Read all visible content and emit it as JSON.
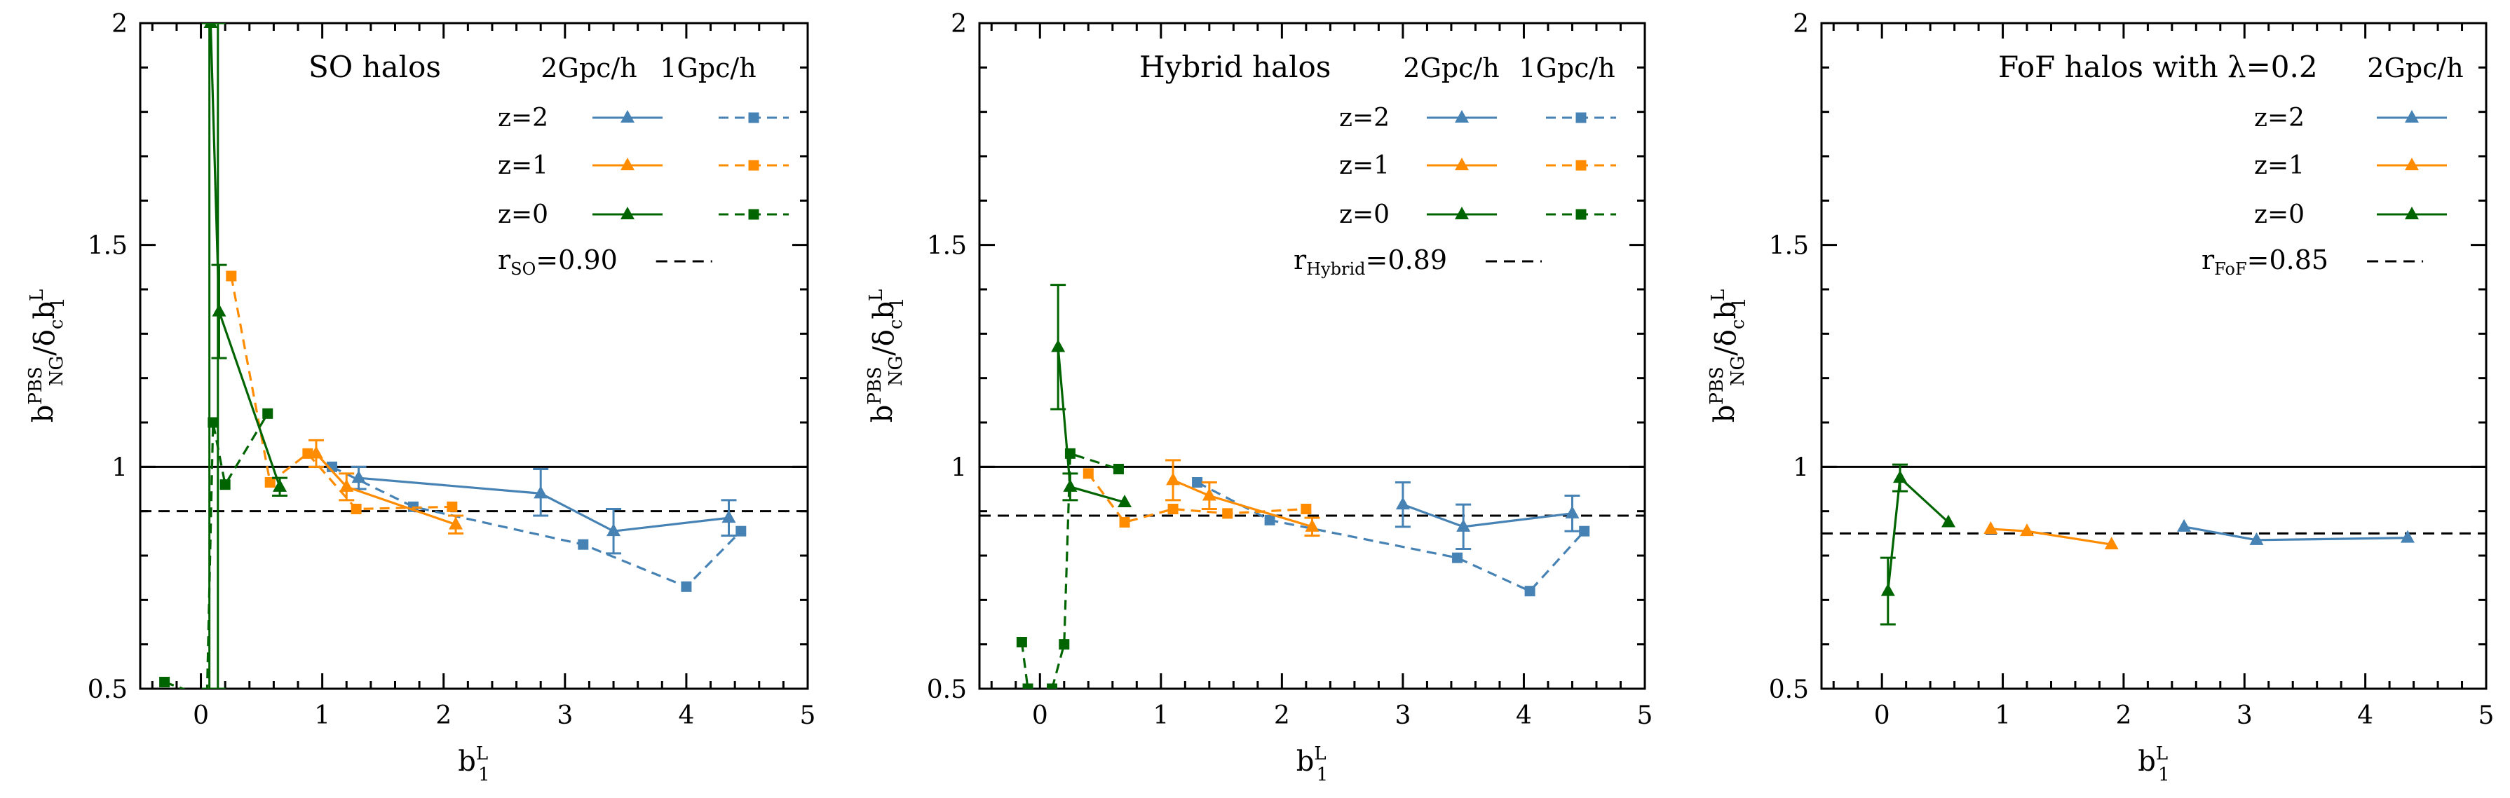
{
  "colors": {
    "blue": "#4682b4",
    "orange": "#ff8c00",
    "green": "#006400",
    "black": "#000000"
  },
  "chart_data": [
    {
      "type": "line",
      "title": "SO halos",
      "xlabel": {
        "base": "b",
        "sub": "1",
        "sup": "L"
      },
      "ylabel": {
        "parts": [
          [
            "b",
            ""
          ],
          [
            "PBS",
            "sup"
          ],
          [
            "NG",
            "sub"
          ],
          [
            "/δ",
            ""
          ],
          [
            "c",
            "sub"
          ],
          [
            "b",
            ""
          ],
          [
            "L",
            "sup"
          ],
          [
            "1",
            "sub"
          ]
        ]
      },
      "xlim": [
        -0.5,
        5
      ],
      "ylim": [
        0.5,
        2
      ],
      "xticks": [
        "0",
        "1",
        "2",
        "3",
        "4",
        "5"
      ],
      "yticks": [
        "0.5",
        "1",
        "1.5",
        "2"
      ],
      "legend_headers": [
        "2Gpc/h",
        "1Gpc/h"
      ],
      "legend_rows": [
        "z=2",
        "z=1",
        "z=0"
      ],
      "ratio_label": {
        "base": "r",
        "sub": "SO",
        "value": "=0.90"
      },
      "ratio": 0.9,
      "series": [
        {
          "name": "z=2 1Gpc/h",
          "color": "blue",
          "dashed": true,
          "marker": "square",
          "points": [
            [
              1.08,
              1.0
            ],
            [
              1.75,
              0.91
            ],
            [
              3.15,
              0.825
            ],
            [
              4.0,
              0.73
            ],
            [
              4.45,
              0.855
            ]
          ]
        },
        {
          "name": "z=2 2Gpc/h",
          "color": "blue",
          "dashed": false,
          "marker": "triangle",
          "points": [
            [
              1.3,
              0.975
            ],
            [
              2.8,
              0.94
            ],
            [
              3.4,
              0.855
            ],
            [
              4.35,
              0.885
            ]
          ],
          "errors": [
            [
              1.3,
              0.95,
              1.0
            ],
            [
              2.8,
              0.89,
              0.995
            ],
            [
              3.4,
              0.805,
              0.905
            ],
            [
              4.35,
              0.845,
              0.925
            ]
          ]
        },
        {
          "name": "z=1 1Gpc/h",
          "color": "orange",
          "dashed": true,
          "marker": "square",
          "points": [
            [
              0.25,
              1.43
            ],
            [
              0.57,
              0.965
            ],
            [
              0.88,
              1.03
            ],
            [
              1.28,
              0.905
            ],
            [
              2.07,
              0.91
            ]
          ]
        },
        {
          "name": "z=1 2Gpc/h",
          "color": "orange",
          "dashed": false,
          "marker": "triangle",
          "points": [
            [
              0.95,
              1.03
            ],
            [
              1.2,
              0.955
            ],
            [
              2.1,
              0.87
            ]
          ],
          "errors": [
            [
              0.95,
              1.0,
              1.06
            ],
            [
              1.2,
              0.925,
              0.985
            ],
            [
              2.1,
              0.85,
              0.89
            ]
          ]
        },
        {
          "name": "z=0 1Gpc/h",
          "color": "green",
          "dashed": true,
          "marker": "square",
          "points": [
            [
              -0.3,
              0.515
            ],
            [
              0.05,
              0.48
            ],
            [
              0.1,
              1.1
            ],
            [
              0.2,
              0.96
            ],
            [
              0.55,
              1.12
            ]
          ]
        },
        {
          "name": "z=0 2Gpc/h",
          "color": "green",
          "dashed": false,
          "marker": "triangle",
          "points": [
            [
              0.08,
              2.0
            ],
            [
              0.15,
              1.35
            ],
            [
              0.65,
              0.955
            ]
          ],
          "errors": [
            [
              0.07,
              0.5,
              2.0
            ],
            [
              0.14,
              0.5,
              2.0
            ],
            [
              0.15,
              1.245,
              1.455
            ],
            [
              0.65,
              0.935,
              0.975
            ]
          ]
        }
      ]
    },
    {
      "type": "line",
      "title": "Hybrid halos",
      "xlabel": {
        "base": "b",
        "sub": "1",
        "sup": "L"
      },
      "ylabel": {
        "parts": [
          [
            "b",
            ""
          ],
          [
            "PBS",
            "sup"
          ],
          [
            "NG",
            "sub"
          ],
          [
            "/δ",
            ""
          ],
          [
            "c",
            "sub"
          ],
          [
            "b",
            ""
          ],
          [
            "L",
            "sup"
          ],
          [
            "1",
            "sub"
          ]
        ]
      },
      "xlim": [
        -0.5,
        5
      ],
      "ylim": [
        0.5,
        2
      ],
      "xticks": [
        "0",
        "1",
        "2",
        "3",
        "4",
        "5"
      ],
      "yticks": [
        "0.5",
        "1",
        "1.5",
        "2"
      ],
      "legend_headers": [
        "2Gpc/h",
        "1Gpc/h"
      ],
      "legend_rows": [
        "z=2",
        "z=1",
        "z=0"
      ],
      "ratio_label": {
        "base": "r",
        "sub": "Hybrid",
        "value": "=0.89"
      },
      "ratio": 0.89,
      "series": [
        {
          "name": "z=2 1Gpc/h",
          "color": "blue",
          "dashed": true,
          "marker": "square",
          "points": [
            [
              1.3,
              0.965
            ],
            [
              1.9,
              0.88
            ],
            [
              3.45,
              0.795
            ],
            [
              4.05,
              0.72
            ],
            [
              4.5,
              0.855
            ]
          ]
        },
        {
          "name": "z=2 2Gpc/h",
          "color": "blue",
          "dashed": false,
          "marker": "triangle",
          "points": [
            [
              3.0,
              0.915
            ],
            [
              3.5,
              0.865
            ],
            [
              4.4,
              0.895
            ]
          ],
          "errors": [
            [
              3.0,
              0.865,
              0.965
            ],
            [
              3.5,
              0.815,
              0.915
            ],
            [
              4.4,
              0.855,
              0.935
            ]
          ]
        },
        {
          "name": "z=1 1Gpc/h",
          "color": "orange",
          "dashed": true,
          "marker": "square",
          "points": [
            [
              0.4,
              0.985
            ],
            [
              0.7,
              0.875
            ],
            [
              1.1,
              0.905
            ],
            [
              1.55,
              0.895
            ],
            [
              2.2,
              0.905
            ]
          ]
        },
        {
          "name": "z=1 2Gpc/h",
          "color": "orange",
          "dashed": false,
          "marker": "triangle",
          "points": [
            [
              1.1,
              0.97
            ],
            [
              1.4,
              0.935
            ],
            [
              2.25,
              0.865
            ]
          ],
          "errors": [
            [
              1.1,
              0.925,
              1.015
            ],
            [
              1.4,
              0.905,
              0.965
            ],
            [
              2.25,
              0.845,
              0.885
            ]
          ]
        },
        {
          "name": "z=0 1Gpc/h",
          "color": "green",
          "dashed": true,
          "marker": "square",
          "points": [
            [
              -0.15,
              0.605
            ],
            [
              -0.1,
              0.5
            ]
          ]
        },
        {
          "name": "z=0 1Gpc/h (b)",
          "color": "green",
          "dashed": true,
          "marker": "square",
          "points": [
            [
              0.1,
              0.5
            ],
            [
              0.2,
              0.6
            ],
            [
              0.25,
              1.03
            ],
            [
              0.65,
              0.995
            ]
          ]
        },
        {
          "name": "z=0 2Gpc/h",
          "color": "green",
          "dashed": false,
          "marker": "triangle",
          "points": [
            [
              0.15,
              1.27
            ],
            [
              0.25,
              0.955
            ],
            [
              0.7,
              0.92
            ]
          ],
          "errors": [
            [
              0.15,
              1.13,
              1.41
            ],
            [
              0.25,
              0.925,
              0.985
            ]
          ]
        }
      ]
    },
    {
      "type": "line",
      "title": "FoF halos with λ=0.2",
      "xlabel": {
        "base": "b",
        "sub": "1",
        "sup": "L"
      },
      "ylabel": {
        "parts": [
          [
            "b",
            ""
          ],
          [
            "PBS",
            "sup"
          ],
          [
            "NG",
            "sub"
          ],
          [
            "/δ",
            ""
          ],
          [
            "c",
            "sub"
          ],
          [
            "b",
            ""
          ],
          [
            "L",
            "sup"
          ],
          [
            "1",
            "sub"
          ]
        ]
      },
      "xlim": [
        -0.5,
        5
      ],
      "ylim": [
        0.5,
        2
      ],
      "xticks": [
        "0",
        "1",
        "2",
        "3",
        "4",
        "5"
      ],
      "yticks": [
        "0.5",
        "1",
        "1.5",
        "2"
      ],
      "legend_headers": [
        "2Gpc/h"
      ],
      "legend_rows": [
        "z=2",
        "z=1",
        "z=0"
      ],
      "ratio_label": {
        "base": "r",
        "sub": "FoF",
        "value": "=0.85"
      },
      "ratio": 0.85,
      "series": [
        {
          "name": "z=2 2Gpc/h",
          "color": "blue",
          "dashed": false,
          "marker": "triangle",
          "points": [
            [
              2.5,
              0.865
            ],
            [
              3.1,
              0.835
            ],
            [
              4.35,
              0.84
            ]
          ]
        },
        {
          "name": "z=1 2Gpc/h",
          "color": "orange",
          "dashed": false,
          "marker": "triangle",
          "points": [
            [
              0.9,
              0.86
            ],
            [
              1.2,
              0.855
            ],
            [
              1.9,
              0.825
            ]
          ]
        },
        {
          "name": "z=0 2Gpc/h",
          "color": "green",
          "dashed": false,
          "marker": "triangle",
          "points": [
            [
              0.05,
              0.72
            ],
            [
              0.15,
              0.975
            ],
            [
              0.55,
              0.875
            ]
          ],
          "errors": [
            [
              0.05,
              0.645,
              0.795
            ],
            [
              0.15,
              0.945,
              1.005
            ]
          ]
        }
      ]
    }
  ]
}
